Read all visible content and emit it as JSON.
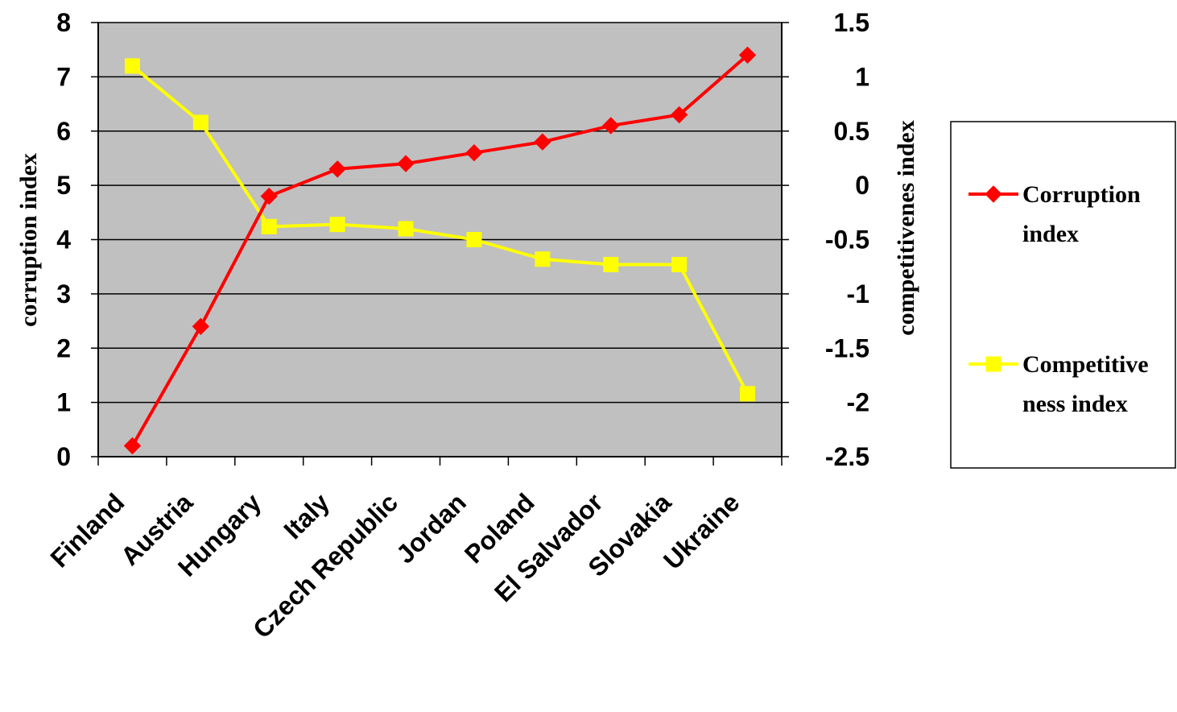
{
  "chart_data": {
    "type": "line",
    "categories": [
      "Finland",
      "Austria",
      "Hungary",
      "Italy",
      "Czech Republic",
      "Jordan",
      "Poland",
      "El Salvador",
      "Slovakia",
      "Ukraine"
    ],
    "series": [
      {
        "name": "Corruption index",
        "axis": "left",
        "color": "#ff0000",
        "marker": "diamond",
        "values": [
          0.2,
          2.4,
          4.8,
          5.3,
          5.4,
          5.6,
          5.8,
          6.1,
          6.3,
          7.4
        ]
      },
      {
        "name": "Competitiveness index",
        "axis": "right",
        "color": "#ffff00",
        "marker": "square",
        "values": [
          1.1,
          0.58,
          -0.38,
          -0.36,
          -0.4,
          -0.5,
          -0.68,
          -0.73,
          -0.73,
          -1.92
        ]
      }
    ],
    "y_left": {
      "label": "corruption index",
      "ylim": [
        0,
        8
      ],
      "ticks": [
        "0",
        "1",
        "2",
        "3",
        "4",
        "5",
        "6",
        "7",
        "8"
      ]
    },
    "y_right": {
      "label": "competitivenes index",
      "ylim": [
        -2.5,
        1.5
      ],
      "ticks": [
        "-2.5",
        "-2",
        "-1.5",
        "-1",
        "-0.5",
        "0",
        "0.5",
        "1",
        "1.5"
      ]
    },
    "legend": {
      "placement": "right",
      "entries": [
        {
          "lines": [
            "Corruption",
            "index"
          ]
        },
        {
          "lines": [
            "Competitive",
            "ness index"
          ]
        }
      ]
    },
    "plot_background": "#c0c0c0",
    "grid": true
  }
}
